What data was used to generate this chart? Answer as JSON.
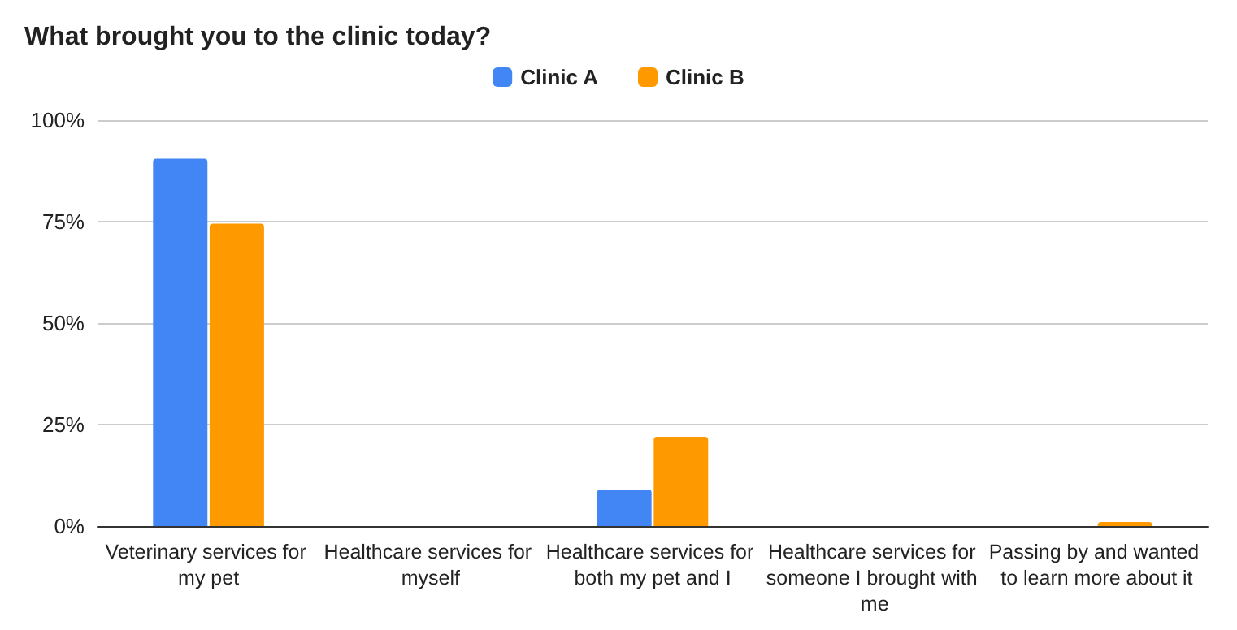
{
  "chart_data": {
    "type": "bar",
    "title": "What brought you to the clinic today?",
    "categories": [
      "Veterinary services for my pet",
      "Healthcare services for myself",
      "Healthcare services for both my pet and I",
      "Healthcare services for someone I brought with me",
      "Passing by and wanted to learn more about it"
    ],
    "series": [
      {
        "name": "Clinic A",
        "color": "#4285f4",
        "values": [
          90.5,
          0,
          9,
          0,
          0
        ]
      },
      {
        "name": "Clinic B",
        "color": "#ff9900",
        "values": [
          74.5,
          0,
          22,
          0,
          1
        ]
      }
    ],
    "ylim": [
      0,
      100
    ],
    "yticks": [
      {
        "value": 0,
        "label": "0%"
      },
      {
        "value": 25,
        "label": "25%"
      },
      {
        "value": 50,
        "label": "50%"
      },
      {
        "value": 75,
        "label": "75%"
      },
      {
        "value": 100,
        "label": "100%"
      }
    ],
    "grid": "y",
    "legend": "top"
  }
}
